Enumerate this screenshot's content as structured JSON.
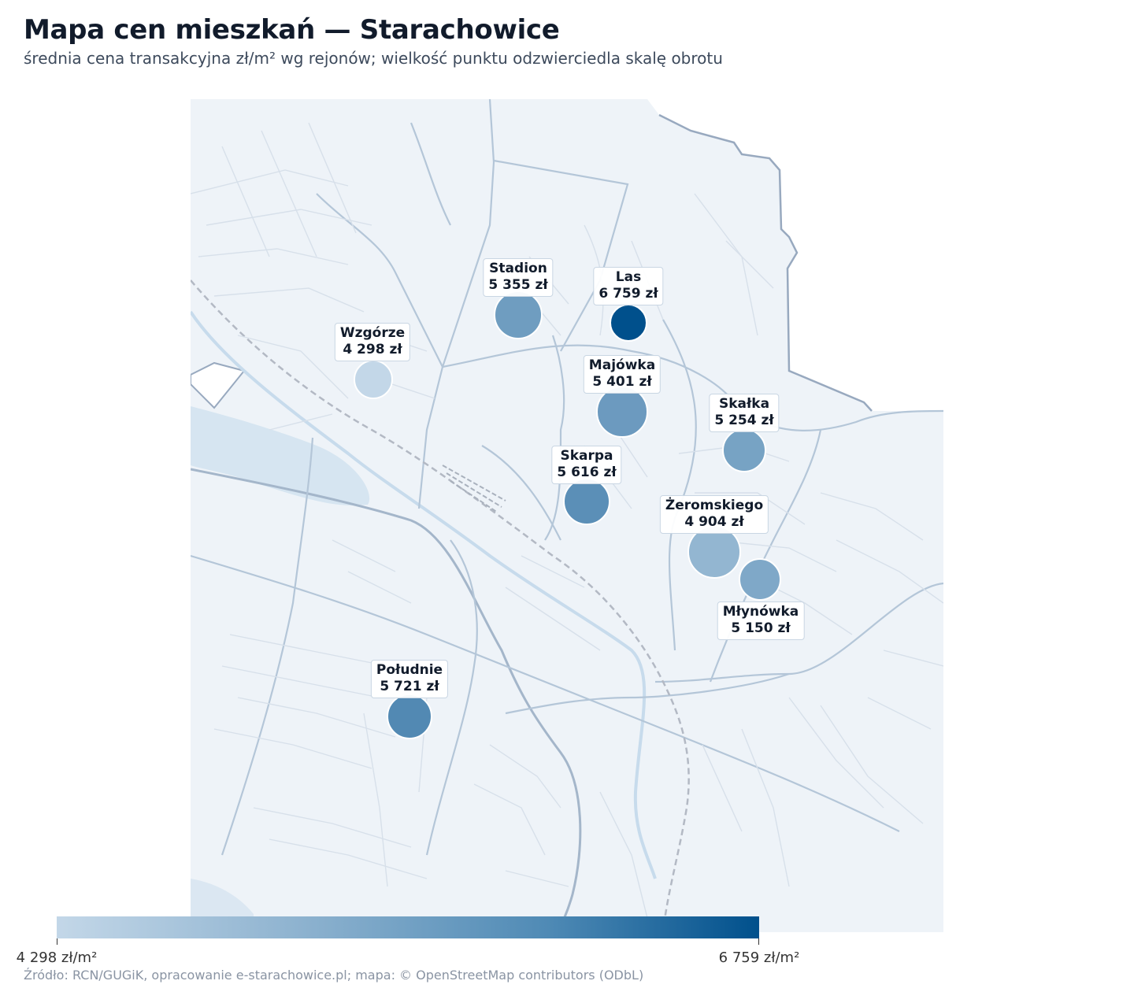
{
  "title": "Mapa cen mieszkań — Starachowice",
  "subtitle": "średnia cena transakcyjna zł/m² wg rejonów; wielkość punktu odzwierciedla skalę obrotu",
  "source": "Źródło: RCN/GUGiK, opracowanie e-starachowice.pl; mapa: © OpenStreetMap contributors (ODbL)",
  "colors": {
    "low": "#c3d7e8",
    "high": "#00508c",
    "map_bg": "#eef3f8",
    "road": "#b7c9da",
    "water": "#c7dbec"
  },
  "colorbar": {
    "min_value": 4298,
    "max_value": 6759,
    "min_label": "4 298 zł/m²",
    "max_label": "6 759 zł/m²"
  },
  "districts": [
    {
      "name": "Stadion",
      "price_label": "5 355 zł",
      "price": 5355,
      "turnover_level": 0.72
    },
    {
      "name": "Las",
      "price_label": "6 759 zł",
      "price": 6759,
      "turnover_level": 0.36
    },
    {
      "name": "Wzgórze",
      "price_label": "4 298 zł",
      "price": 4298,
      "turnover_level": 0.4
    },
    {
      "name": "Majówka",
      "price_label": "5 401 zł",
      "price": 5401,
      "turnover_level": 0.82
    },
    {
      "name": "Skałka",
      "price_label": "5 254 zł",
      "price": 5254,
      "turnover_level": 0.58
    },
    {
      "name": "Skarpa",
      "price_label": "5 616 zł",
      "price": 5616,
      "turnover_level": 0.68
    },
    {
      "name": "Żeromskiego",
      "price_label": "4 904 zł",
      "price": 4904,
      "turnover_level": 0.9
    },
    {
      "name": "Młynówka",
      "price_label": "5 150 zł",
      "price": 5150,
      "turnover_level": 0.5
    },
    {
      "name": "Południe",
      "price_label": "5 721 zł",
      "price": 5721,
      "turnover_level": 0.62
    }
  ]
}
